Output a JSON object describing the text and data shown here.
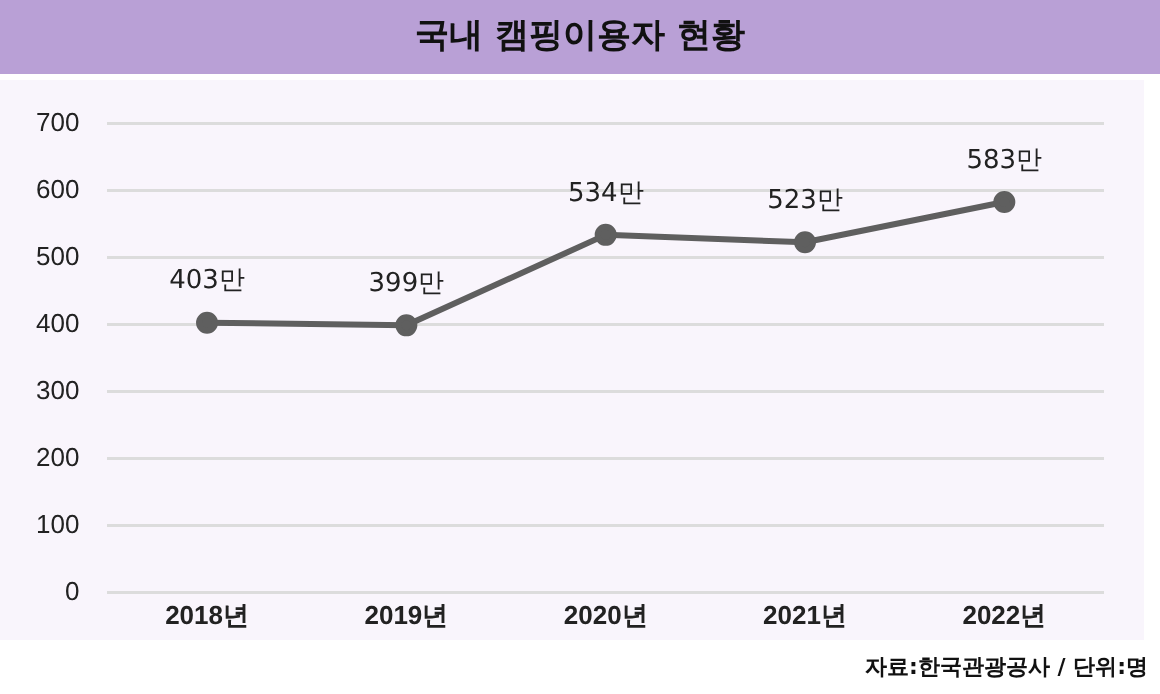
{
  "chart_data": {
    "type": "line",
    "title": "국내 캠핑이용자 현황",
    "categories": [
      "2018년",
      "2019년",
      "2020년",
      "2021년",
      "2022년"
    ],
    "series": [
      {
        "color": "#5f5f5f",
        "values": [
          403,
          399,
          534,
          523,
          583
        ],
        "value_labels": [
          "403만",
          "399만",
          "534만",
          "523만",
          "583만"
        ]
      }
    ],
    "ylim": [
      0,
      700
    ],
    "yticks": [
      0,
      100,
      200,
      300,
      400,
      500,
      600,
      700
    ],
    "grid": "y",
    "legend": false,
    "marker": "circle",
    "line_style": "solid",
    "annotations": [
      "자료:한국관광공사 / 단위:명"
    ]
  }
}
